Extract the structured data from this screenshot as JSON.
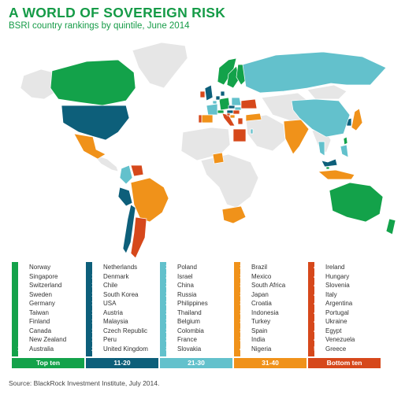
{
  "header": {
    "title": "A WORLD OF SOVEREIGN RISK",
    "subtitle": "BSRI country rankings by quintile, June 2014"
  },
  "source": "Source: BlackRock Investment Institute, July 2014.",
  "colors": {
    "q1": "#13a24a",
    "q2": "#0d5f7a",
    "q3": "#63c1cc",
    "q4": "#f0921a",
    "q5": "#d6481b",
    "unranked": "#e6e6e6",
    "border": "#ffffff"
  },
  "chart_data": {
    "type": "table",
    "title": "A WORLD OF SOVEREIGN RISK",
    "subtitle": "BSRI country rankings by quintile, June 2014",
    "quintiles": [
      {
        "label": "Top ten",
        "color": "#13a24a",
        "countries": [
          {
            "rank": 1,
            "name": "Norway"
          },
          {
            "rank": 2,
            "name": "Singapore"
          },
          {
            "rank": 3,
            "name": "Switzerland"
          },
          {
            "rank": 4,
            "name": "Sweden"
          },
          {
            "rank": 5,
            "name": "Germany"
          },
          {
            "rank": 6,
            "name": "Taiwan"
          },
          {
            "rank": 7,
            "name": "Finland"
          },
          {
            "rank": 8,
            "name": "Canada"
          },
          {
            "rank": 9,
            "name": "New Zealand"
          },
          {
            "rank": 10,
            "name": "Australia"
          }
        ]
      },
      {
        "label": "11-20",
        "color": "#0d5f7a",
        "countries": [
          {
            "rank": 11,
            "name": "Netherlands"
          },
          {
            "rank": 12,
            "name": "Denmark"
          },
          {
            "rank": 13,
            "name": "Chile"
          },
          {
            "rank": 14,
            "name": "South Korea"
          },
          {
            "rank": 15,
            "name": "USA"
          },
          {
            "rank": 16,
            "name": "Austria"
          },
          {
            "rank": 17,
            "name": "Malaysia"
          },
          {
            "rank": 18,
            "name": "Czech Republic"
          },
          {
            "rank": 19,
            "name": "Peru"
          },
          {
            "rank": 20,
            "name": "United Kingdom"
          }
        ]
      },
      {
        "label": "21-30",
        "color": "#63c1cc",
        "countries": [
          {
            "rank": 21,
            "name": "Poland"
          },
          {
            "rank": 22,
            "name": "Israel"
          },
          {
            "rank": 23,
            "name": "China"
          },
          {
            "rank": 24,
            "name": "Russia"
          },
          {
            "rank": 25,
            "name": "Philippines"
          },
          {
            "rank": 26,
            "name": "Thailand"
          },
          {
            "rank": 27,
            "name": "Belgium"
          },
          {
            "rank": 28,
            "name": "Colombia"
          },
          {
            "rank": 29,
            "name": "France"
          },
          {
            "rank": 30,
            "name": "Slovakia"
          }
        ]
      },
      {
        "label": "31-40",
        "color": "#f0921a",
        "countries": [
          {
            "rank": 31,
            "name": "Brazil"
          },
          {
            "rank": 32,
            "name": "Mexico"
          },
          {
            "rank": 33,
            "name": "South Africa"
          },
          {
            "rank": 34,
            "name": "Japan"
          },
          {
            "rank": 35,
            "name": "Croatia"
          },
          {
            "rank": 36,
            "name": "Indonesia"
          },
          {
            "rank": 37,
            "name": "Turkey"
          },
          {
            "rank": 38,
            "name": "Spain"
          },
          {
            "rank": 39,
            "name": "India"
          },
          {
            "rank": 40,
            "name": "Nigeria"
          }
        ]
      },
      {
        "label": "Bottom ten",
        "color": "#d6481b",
        "countries": [
          {
            "rank": 41,
            "name": "Ireland"
          },
          {
            "rank": 42,
            "name": "Hungary"
          },
          {
            "rank": 43,
            "name": "Slovenia"
          },
          {
            "rank": 44,
            "name": "Italy"
          },
          {
            "rank": 45,
            "name": "Argentina"
          },
          {
            "rank": 46,
            "name": "Portugal"
          },
          {
            "rank": 47,
            "name": "Ukraine"
          },
          {
            "rank": 48,
            "name": "Egypt"
          },
          {
            "rank": 49,
            "name": "Venezuela"
          },
          {
            "rank": 50,
            "name": "Greece"
          }
        ]
      }
    ]
  }
}
